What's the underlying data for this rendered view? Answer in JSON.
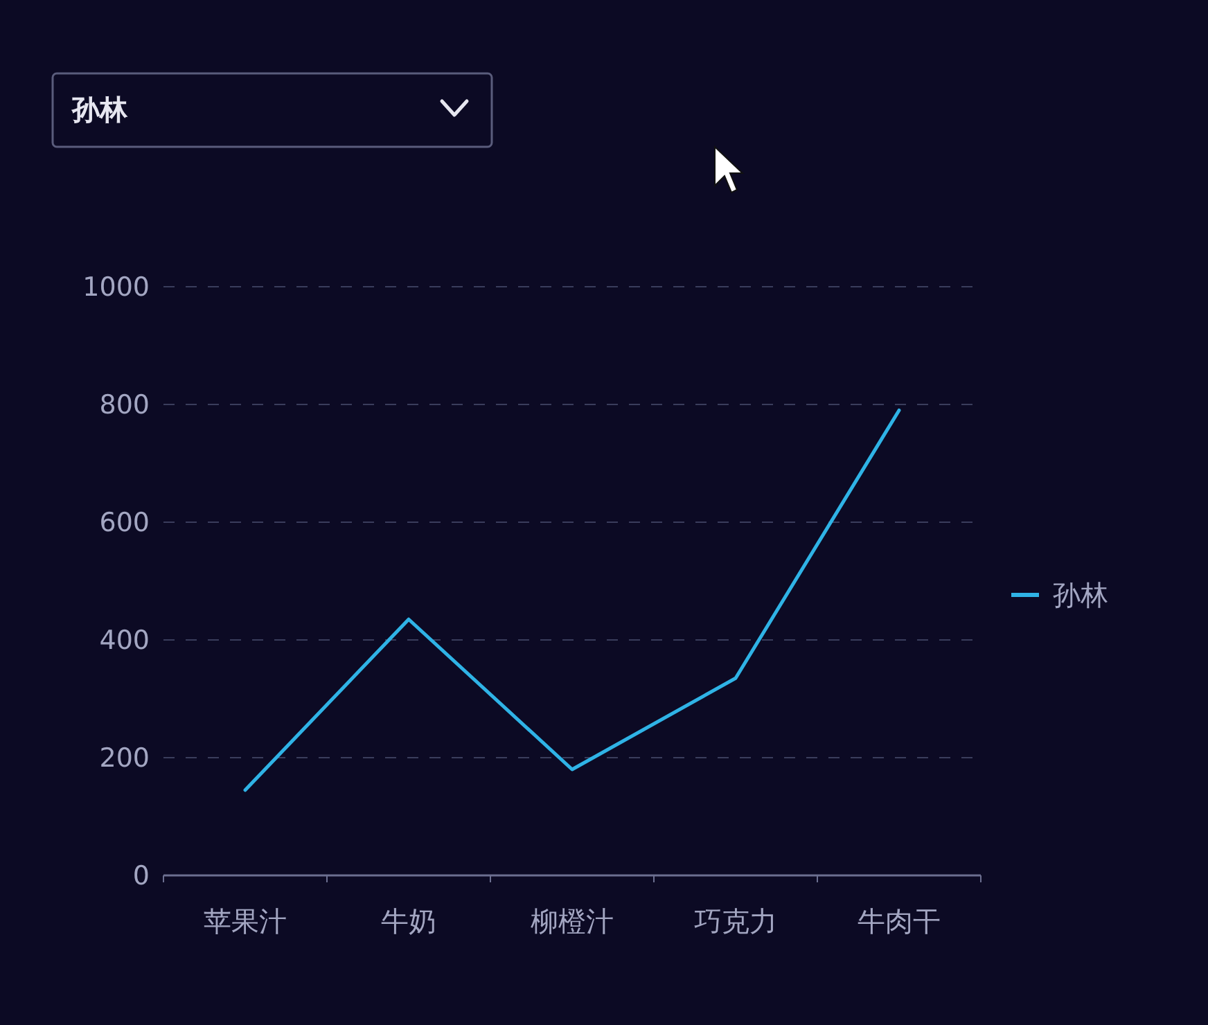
{
  "chart_data": {
    "type": "line",
    "categories": [
      "苹果汁",
      "牛奶",
      "柳橙汁",
      "巧克力",
      "牛肉干"
    ],
    "series": [
      {
        "name": "孙林",
        "color": "#2fb3e6",
        "values": [
          145,
          435,
          180,
          335,
          790
        ]
      }
    ],
    "ylim": [
      0,
      1000
    ],
    "yticks": [
      0,
      200,
      400,
      600,
      800,
      1000
    ],
    "grid": "y",
    "legend": "right",
    "marker": "none",
    "line_style": "solid",
    "annotations": [
      "孙林"
    ]
  }
}
